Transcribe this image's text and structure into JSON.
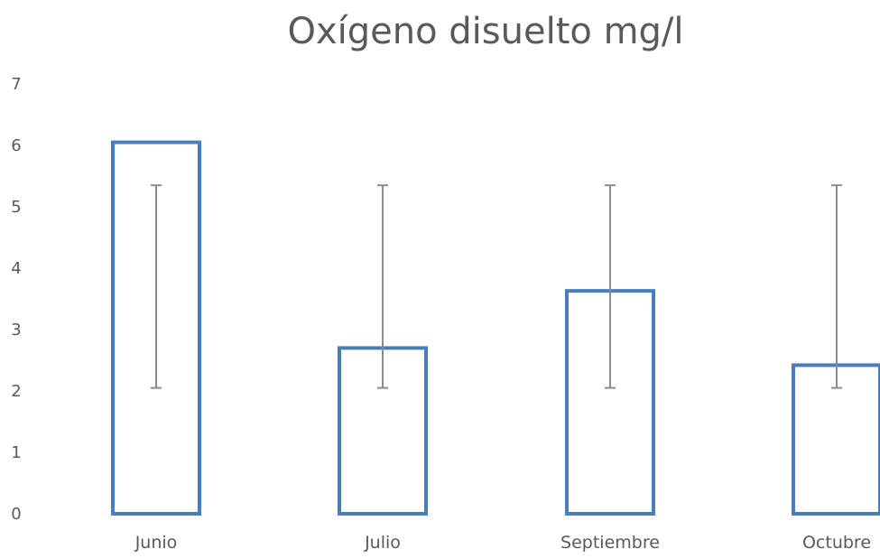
{
  "chart_data": {
    "type": "bar",
    "title": "Oxígeno disuelto mg/l",
    "categories": [
      "Junio",
      "Julio",
      "Septiembre",
      "Octubre"
    ],
    "values": [
      6.05,
      2.7,
      3.63,
      2.42
    ],
    "error_bars": [
      {
        "low": 2.05,
        "high": 5.35
      },
      {
        "low": 2.05,
        "high": 5.35
      },
      {
        "low": 2.05,
        "high": 5.35
      },
      {
        "low": 2.05,
        "high": 5.35
      }
    ],
    "y_ticks": [
      "0",
      "1",
      "2",
      "3",
      "4",
      "5",
      "6",
      "7"
    ],
    "ylim": [
      0,
      7
    ],
    "grid": false,
    "legend": "none",
    "bar_style": "outline",
    "colors": {
      "bar_outline": "#4a7ebb",
      "error_bar": "#8c8c8c",
      "text": "#595959"
    }
  }
}
